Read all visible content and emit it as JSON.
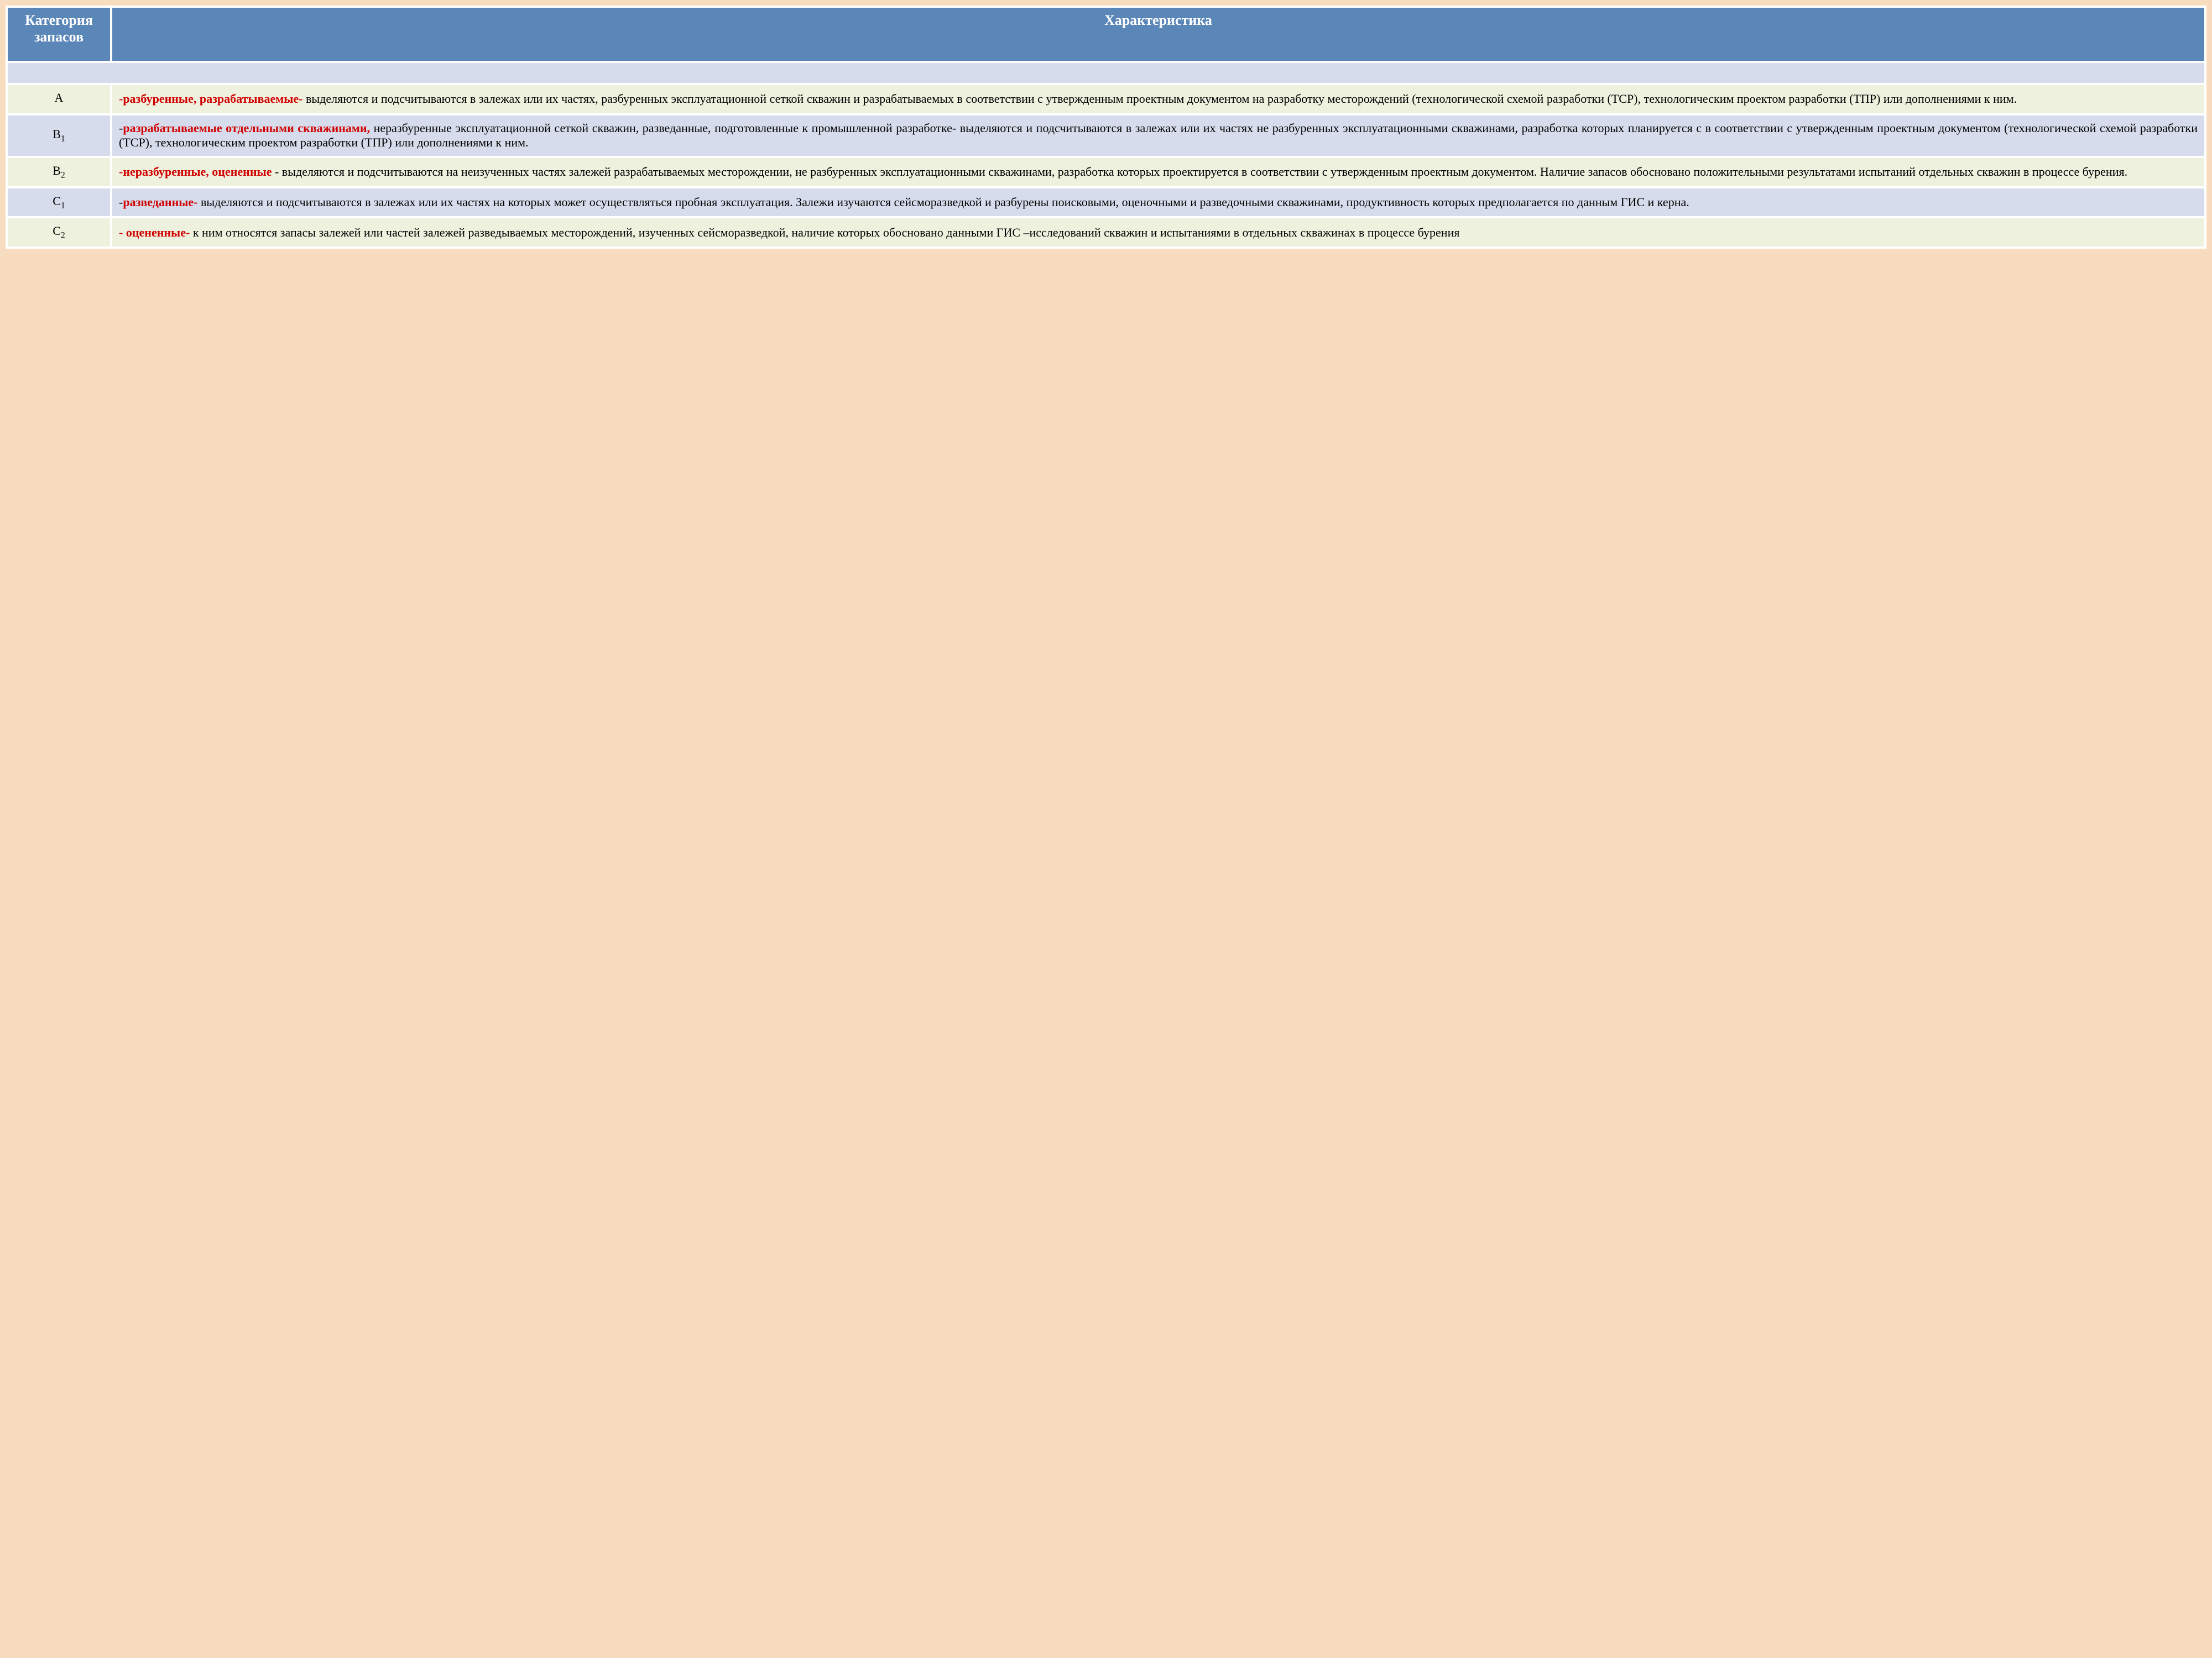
{
  "header": {
    "col_category": "Категория запасов",
    "col_characteristic": "Характеристика"
  },
  "rows": {
    "a": {
      "cat_main": "А",
      "cat_sub": "",
      "hl": "-разбуренные, разрабатываемые-",
      "rest": " выделяются и подсчитываются в залежах или их частях, разбуренных эксплуатационной сеткой скважин и разрабатываемых в соответствии с утвержденным проектным документом на разработку месторождений (технологической схемой разработки (ТСР), технологическим проектом разработки (ТПР) или дополнениями к ним."
    },
    "b1": {
      "cat_main": "В",
      "cat_sub": "1",
      "hl_pre": "-",
      "hl": "разрабатываемые отдельными скважинами,",
      "rest": " неразбуренные эксплуатационной сеткой скважин, разведанные, подготовленные к промышленной разработке- выделяются и подсчитываются в залежах или их частях не разбуренных эксплуатационными скважинами, разработка которых планируется с в соответствии с утвержденным проектным документом (технологической схемой разработки (ТСР), технологическим проектом разработки (ТПР) или дополнениями к ним."
    },
    "b2": {
      "cat_main": "В",
      "cat_sub": "2",
      "hl": "-неразбуренные, оцененные ",
      "rest": "- выделяются и подсчитываются на неизученных частях залежей разрабатываемых месторождении, не разбуренных эксплуатационными скважинами, разработка которых проектируется в соответствии с утвержденным проектным документом. Наличие запасов обосновано положительными результатами испытаний отдельных скважин в процессе бурения."
    },
    "c1": {
      "cat_main": "С",
      "cat_sub": "1",
      "hl_pre": "-",
      "hl": "разведанные-",
      "rest": " выделяются и подсчитываются в залежах или их частях на которых может осуществляться пробная эксплуатация. Залежи изучаются сейсморазведкой и разбурены поисковыми, оценочными и разведочными скважинами, продуктивность которых предполагается по данным ГИС и керна."
    },
    "c2": {
      "cat_main": "С",
      "cat_sub": "2",
      "hl": "- оцененные-",
      "rest": " к ним относятся запасы залежей или частей залежей разведываемых месторождений, изученных сейсморазведкой, наличие  которых обосновано данными ГИС –исследований скважин и испытаниями в отдельных скважинах в процессе бурения"
    }
  },
  "colors": {
    "page_bg": "#f8dcc0",
    "header_bg": "#5b87b8",
    "header_text": "#ffffff",
    "light_row_bg": "#eff1df",
    "dark_row_bg": "#d6dceb",
    "highlight_text": "#d00000",
    "body_text": "#000000",
    "table_gap": "#ffffff"
  }
}
